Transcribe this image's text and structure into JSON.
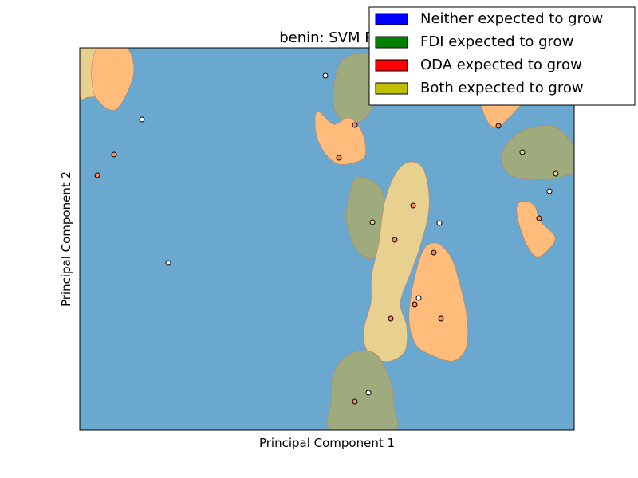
{
  "chart_data": {
    "type": "scatter",
    "title": "benin: SVM R",
    "xlabel": "Principal Component 1",
    "ylabel": "Principal Component 2",
    "xlim": [
      0,
      620
    ],
    "ylim": [
      0,
      480
    ],
    "grid": false,
    "legend_position": "top-right",
    "background_color": "#6aa8cf",
    "legend": [
      {
        "label": "Neither expected to grow",
        "color": "#0000ff"
      },
      {
        "label": "FDI expected to grow",
        "color": "#008000"
      },
      {
        "label": "ODA expected to grow",
        "color": "#ff0000"
      },
      {
        "label": "Both expected to grow",
        "color": "#bfbf00"
      }
    ],
    "regions": [
      {
        "class": "both",
        "color": "#e8d08f",
        "path": [
          [
            22,
            8
          ],
          [
            26,
            0
          ],
          [
            52,
            0
          ],
          [
            48,
            -20
          ],
          [
            42,
            -35
          ],
          [
            32,
            -50
          ],
          [
            22,
            -60
          ],
          [
            10,
            -62
          ],
          [
            0,
            -60
          ],
          [
            0,
            -2
          ],
          [
            12,
            2
          ]
        ]
      },
      {
        "class": "oda",
        "color": "#ffbc7a",
        "path": [
          [
            19,
            -60
          ],
          [
            15,
            -40
          ],
          [
            16,
            -15
          ],
          [
            24,
            4
          ],
          [
            36,
            10
          ],
          [
            48,
            10
          ],
          [
            61,
            -2
          ],
          [
            67,
            -18
          ],
          [
            67,
            -36
          ],
          [
            60,
            -55
          ],
          [
            52,
            -70
          ],
          [
            44,
            -78
          ],
          [
            32,
            -75
          ]
        ]
      },
      {
        "class": "fdi",
        "color": "#9eab7c",
        "path": [
          [
            322,
            -30
          ],
          [
            330,
            -15
          ],
          [
            345,
            -8
          ],
          [
            362,
            -8
          ],
          [
            375,
            -22
          ],
          [
            378,
            -42
          ],
          [
            372,
            -65
          ],
          [
            356,
            -90
          ],
          [
            338,
            -93
          ],
          [
            323,
            -85
          ],
          [
            318,
            -65
          ]
        ]
      },
      {
        "class": "oda",
        "color": "#ffbc7a",
        "path": [
          [
            298,
            -80
          ],
          [
            296,
            -106
          ],
          [
            306,
            -130
          ],
          [
            322,
            -145
          ],
          [
            340,
            -145
          ],
          [
            357,
            -137
          ],
          [
            357,
            -115
          ],
          [
            348,
            -96
          ],
          [
            336,
            -88
          ],
          [
            318,
            -96
          ]
        ]
      },
      {
        "class": "fdi",
        "color": "#9eab7c",
        "path": [
          [
            335,
            -200
          ],
          [
            336,
            -225
          ],
          [
            345,
            -250
          ],
          [
            360,
            -264
          ],
          [
            373,
            -260
          ],
          [
            382,
            -240
          ],
          [
            383,
            -210
          ],
          [
            378,
            -178
          ],
          [
            362,
            -165
          ],
          [
            345,
            -165
          ]
        ]
      },
      {
        "class": "both",
        "color": "#e8d08f",
        "path": [
          [
            366,
            -286
          ],
          [
            365,
            -320
          ],
          [
            357,
            -350
          ],
          [
            358,
            -375
          ],
          [
            370,
            -390
          ],
          [
            390,
            -393
          ],
          [
            408,
            -380
          ],
          [
            410,
            -350
          ],
          [
            402,
            -320
          ],
          [
            414,
            -285
          ],
          [
            425,
            -255
          ],
          [
            437,
            -210
          ],
          [
            437,
            -175
          ],
          [
            428,
            -148
          ],
          [
            410,
            -144
          ],
          [
            395,
            -160
          ],
          [
            382,
            -195
          ],
          [
            375,
            -245
          ]
        ]
      },
      {
        "class": "oda",
        "color": "#ffbc7a",
        "path": [
          [
            428,
            -260
          ],
          [
            413,
            -330
          ],
          [
            420,
            -370
          ],
          [
            440,
            -385
          ],
          [
            468,
            -393
          ],
          [
            485,
            -375
          ],
          [
            485,
            -335
          ],
          [
            476,
            -295
          ],
          [
            465,
            -262
          ],
          [
            446,
            -245
          ]
        ]
      },
      {
        "class": "oda",
        "color": "#ffbc7a",
        "path": [
          [
            496,
            -40
          ],
          [
            500,
            -60
          ],
          [
            510,
            -90
          ],
          [
            522,
            -100
          ],
          [
            538,
            -88
          ],
          [
            556,
            -70
          ],
          [
            580,
            -60
          ],
          [
            598,
            -63
          ],
          [
            608,
            -55
          ],
          [
            620,
            -50
          ],
          [
            620,
            0
          ],
          [
            494,
            0
          ]
        ]
      },
      {
        "class": "fdi",
        "color": "#9eab7c",
        "path": [
          [
            528,
            -140
          ],
          [
            540,
            -160
          ],
          [
            565,
            -165
          ],
          [
            590,
            -165
          ],
          [
            610,
            -160
          ],
          [
            620,
            -155
          ],
          [
            620,
            -125
          ],
          [
            598,
            -100
          ],
          [
            582,
            -98
          ],
          [
            560,
            -102
          ],
          [
            546,
            -110
          ],
          [
            535,
            -122
          ]
        ]
      },
      {
        "class": "oda",
        "color": "#ffbc7a",
        "path": [
          [
            551,
            -222
          ],
          [
            548,
            -200
          ],
          [
            556,
            -193
          ],
          [
            570,
            -198
          ],
          [
            578,
            -218
          ],
          [
            596,
            -238
          ],
          [
            586,
            -255
          ],
          [
            573,
            -262
          ],
          [
            562,
            -250
          ]
        ]
      },
      {
        "class": "fdi",
        "color": "#9eab7c",
        "path": [
          [
            315,
            -445
          ],
          [
            316,
            -480
          ],
          [
            393,
            -480
          ],
          [
            394,
            -452
          ],
          [
            390,
            -420
          ],
          [
            374,
            -387
          ],
          [
            355,
            -380
          ],
          [
            335,
            -387
          ],
          [
            318,
            -410
          ]
        ]
      }
    ],
    "points": [
      {
        "x": 308,
        "y": -35,
        "class": "neither",
        "color": "#ffffff"
      },
      {
        "x": 78,
        "y": -90,
        "class": "neither",
        "color": "#ffffff"
      },
      {
        "x": 345,
        "y": -97,
        "class": "oda",
        "color": "#ff8c50"
      },
      {
        "x": 525,
        "y": -98,
        "class": "oda",
        "color": "#ff8c50"
      },
      {
        "x": 43,
        "y": -134,
        "class": "oda",
        "color": "#ff8c50"
      },
      {
        "x": 325,
        "y": -138,
        "class": "oda",
        "color": "#ff8c50"
      },
      {
        "x": 555,
        "y": -131,
        "class": "both",
        "color": "#e8d08f"
      },
      {
        "x": 22,
        "y": -160,
        "class": "oda",
        "color": "#ff8c50"
      },
      {
        "x": 597,
        "y": -158,
        "class": "both",
        "color": "#e8d08f"
      },
      {
        "x": 589,
        "y": -180,
        "class": "neither",
        "color": "#ffffff"
      },
      {
        "x": 418,
        "y": -198,
        "class": "oda",
        "color": "#ff8c50"
      },
      {
        "x": 576,
        "y": -214,
        "class": "oda",
        "color": "#ff8c50"
      },
      {
        "x": 367,
        "y": -219,
        "class": "both",
        "color": "#e8d08f"
      },
      {
        "x": 451,
        "y": -220,
        "class": "neither",
        "color": "#ffffff"
      },
      {
        "x": 395,
        "y": -241,
        "class": "oda",
        "color": "#ff8c50"
      },
      {
        "x": 444,
        "y": -257,
        "class": "oda",
        "color": "#ff8c50"
      },
      {
        "x": 111,
        "y": -270,
        "class": "neither",
        "color": "#ffffff"
      },
      {
        "x": 425,
        "y": -314,
        "class": "neither",
        "color": "#ffffff"
      },
      {
        "x": 420,
        "y": -322,
        "class": "oda",
        "color": "#ff8c50"
      },
      {
        "x": 390,
        "y": -340,
        "class": "oda",
        "color": "#ff8c50"
      },
      {
        "x": 453,
        "y": -340,
        "class": "oda",
        "color": "#ff8c50"
      },
      {
        "x": 362,
        "y": -433,
        "class": "neither",
        "color": "#ffffff"
      },
      {
        "x": 345,
        "y": -444,
        "class": "oda",
        "color": "#ff8c50"
      }
    ]
  }
}
